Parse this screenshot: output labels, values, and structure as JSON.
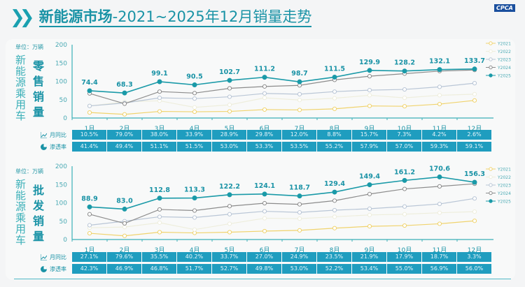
{
  "header": {
    "title_bold": "新能源市场",
    "title_rest": "-2021~2025年12月销量走势",
    "logo_text": "CPCA"
  },
  "colors": {
    "Y2021": "#f0d36e",
    "Y2022": "#eeeedd",
    "Y2023": "#b9c6d6",
    "Y2024": "#8c8c8c",
    "Y2025": "#1a9aa8",
    "table": "#1f9dbf"
  },
  "row_labels": {
    "yoy": "月同比",
    "penetration": "渗透率"
  },
  "chart_data": [
    {
      "type": "line",
      "title": "新能源乘用车 零售销量",
      "unit": "单位：万辆",
      "side_label": "新能源乘用车",
      "main_label": "零售销量",
      "categories": [
        "1月",
        "2月",
        "3月",
        "4月",
        "5月",
        "6月",
        "7月",
        "8月",
        "9月",
        "10月",
        "11月",
        "12月"
      ],
      "ylim": [
        0,
        200
      ],
      "yticks": [
        "0",
        "50",
        "100",
        "150",
        "200"
      ],
      "legend": "right",
      "series": [
        {
          "name": "Y2021",
          "values": [
            15,
            10,
            18,
            17,
            18,
            23,
            22,
            25,
            33,
            32,
            38,
            48
          ]
        },
        {
          "name": "Y2022",
          "values": [
            33,
            44,
            47,
            29,
            36,
            55,
            49,
            54,
            62,
            55,
            62,
            65
          ]
        },
        {
          "name": "Y2023",
          "values": [
            33,
            41,
            55,
            53,
            58,
            67,
            65,
            72,
            76,
            78,
            85,
            95
          ]
        },
        {
          "name": "Y2024",
          "values": [
            67,
            39,
            72,
            68,
            81,
            86,
            89,
            104,
            114,
            121,
            128,
            131
          ]
        },
        {
          "name": "Y2025",
          "values": [
            74.4,
            68.3,
            99.1,
            90.5,
            102.7,
            111.2,
            98.7,
            111.5,
            129.9,
            128.2,
            132.1,
            133.7
          ]
        }
      ],
      "data_labels": [
        "74.4",
        "68.3",
        "99.1",
        "90.5",
        "102.7",
        "111.2",
        "98.7",
        "111.5",
        "129.9",
        "128.2",
        "132.1",
        "133.7"
      ],
      "yoy": [
        "10.5%",
        "79.0%",
        "38.0%",
        "33.9%",
        "28.9%",
        "29.8%",
        "12.0%",
        "8.8%",
        "15.7%",
        "7.3%",
        "4.2%",
        "2.6%"
      ],
      "penetration": [
        "41.4%",
        "49.4%",
        "51.1%",
        "51.5%",
        "53.0%",
        "53.3%",
        "53.5%",
        "55.2%",
        "57.9%",
        "57.0%",
        "59.3%",
        "59.1%"
      ]
    },
    {
      "type": "line",
      "title": "新能源乘用车 批发销量",
      "unit": "单位：万辆",
      "side_label": "新能源乘用车",
      "main_label": "批发销量",
      "categories": [
        "1月",
        "2月",
        "3月",
        "4月",
        "5月",
        "6月",
        "7月",
        "8月",
        "9月",
        "10月",
        "11月",
        "12月"
      ],
      "ylim": [
        0,
        200
      ],
      "yticks": [
        "0",
        "50",
        "100",
        "150",
        "200"
      ],
      "legend": "right",
      "series": [
        {
          "name": "Y2021",
          "values": [
            17,
            10,
            20,
            18,
            20,
            23,
            25,
            31,
            36,
            38,
            43,
            51
          ]
        },
        {
          "name": "Y2022",
          "values": [
            32,
            34,
            46,
            27,
            43,
            58,
            57,
            62,
            67,
            69,
            73,
            76
          ]
        },
        {
          "name": "Y2023",
          "values": [
            39,
            50,
            62,
            60,
            69,
            77,
            74,
            80,
            84,
            90,
            97,
            112
          ]
        },
        {
          "name": "Y2024",
          "values": [
            69,
            44,
            82,
            79,
            91,
            99,
            96,
            106,
            124,
            138,
            145,
            152
          ]
        },
        {
          "name": "Y2025",
          "values": [
            88.9,
            83.0,
            112.8,
            113.3,
            122.2,
            124.1,
            118.7,
            129.4,
            149.4,
            161.2,
            170.6,
            156.3
          ]
        }
      ],
      "data_labels": [
        "88.9",
        "83.0",
        "112.8",
        "113.3",
        "122.2",
        "124.1",
        "118.7",
        "129.4",
        "149.4",
        "161.2",
        "170.6",
        "156.3"
      ],
      "yoy": [
        "27.1%",
        "79.6%",
        "35.5%",
        "40.2%",
        "33.7%",
        "27.0%",
        "24.9%",
        "23.5%",
        "21.9%",
        "17.9%",
        "18.7%",
        "3.3%"
      ],
      "penetration": [
        "42.3%",
        "46.9%",
        "46.8%",
        "51.7%",
        "52.7%",
        "49.8%",
        "53.0%",
        "52.2%",
        "53.4%",
        "55.0%",
        "56.9%",
        "56.0%"
      ]
    }
  ]
}
